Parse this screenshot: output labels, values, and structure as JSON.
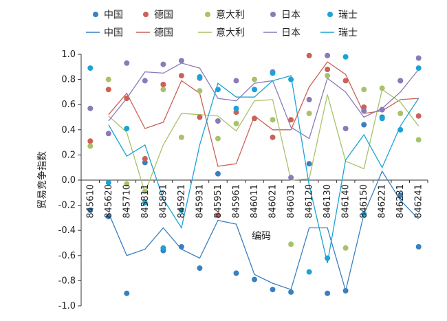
{
  "chart_data": {
    "type": "scatter",
    "title": "",
    "xlabel": "编码",
    "ylabel": "贸易竞争指数",
    "ylim": [
      -1.0,
      1.0
    ],
    "yticks": [
      "-1.0",
      "-0.8",
      "-0.6",
      "-0.4",
      "-0.2",
      "0.0",
      "0.2",
      "0.4",
      "0.6",
      "0.8",
      "1.0"
    ],
    "categories": [
      "845610",
      "845620",
      "845710",
      "845811",
      "845891",
      "845921",
      "845931",
      "845951",
      "845961",
      "846011",
      "846021",
      "846031",
      "846120",
      "846130",
      "846140",
      "846150",
      "846221",
      "846231",
      "846241"
    ],
    "legend_placement": "top",
    "legend_scatter_row": [
      "中国",
      "德国",
      "意大利",
      "日本",
      "瑞士"
    ],
    "legend_line_row": [
      "中国",
      "德国",
      "意大利",
      "日本",
      "瑞士"
    ],
    "series": [
      {
        "name": "中国",
        "color": "#3a7fc0",
        "points": [
          -0.24,
          -0.29,
          -0.9,
          0.14,
          -0.56,
          -0.53,
          -0.7,
          0.05,
          -0.74,
          -0.79,
          -0.87,
          -0.89,
          0.13,
          -0.9,
          -0.88,
          0.44,
          0.5,
          -0.12,
          -0.53
        ],
        "trend": [
          null,
          -0.26,
          -0.6,
          -0.55,
          -0.38,
          -0.55,
          -0.62,
          -0.32,
          -0.35,
          -0.75,
          -0.82,
          -0.87,
          -0.38,
          -0.38,
          -0.88,
          -0.27,
          0.07,
          -0.16,
          -0.31
        ]
      },
      {
        "name": "德国",
        "color": "#cc6155",
        "points": [
          0.31,
          0.72,
          0.65,
          0.17,
          0.76,
          0.83,
          0.5,
          -0.28,
          0.54,
          0.49,
          0.34,
          0.48,
          0.99,
          0.88,
          0.79,
          0.58,
          0.56,
          0.79,
          0.51
        ],
        "trend": [
          null,
          0.52,
          0.69,
          0.41,
          0.46,
          0.79,
          0.69,
          0.11,
          0.13,
          0.51,
          0.4,
          0.4,
          0.74,
          0.94,
          0.84,
          0.53,
          0.55,
          0.64,
          0.65
        ]
      },
      {
        "name": "意大利",
        "color": "#a8c26a",
        "points": [
          0.27,
          0.8,
          -0.03,
          -0.09,
          0.72,
          0.34,
          0.71,
          0.33,
          0.45,
          0.8,
          0.48,
          -0.51,
          0.53,
          0.83,
          -0.54,
          0.72,
          0.73,
          0.53,
          0.32
        ],
        "trend": [
          null,
          0.51,
          0.38,
          -0.1,
          0.28,
          0.53,
          0.52,
          0.51,
          0.39,
          0.63,
          0.64,
          0.0,
          0.01,
          0.68,
          0.15,
          0.09,
          0.72,
          0.62,
          0.43
        ]
      },
      {
        "name": "日本",
        "color": "#8c7ab8",
        "points": [
          0.57,
          0.37,
          0.93,
          0.79,
          0.92,
          0.95,
          0.81,
          0.47,
          0.79,
          0.72,
          0.86,
          0.02,
          0.64,
          0.99,
          0.41,
          0.55,
          0.56,
          0.79,
          0.97
        ],
        "trend": [
          null,
          0.47,
          0.65,
          0.86,
          0.85,
          0.93,
          0.89,
          0.65,
          0.63,
          0.77,
          0.79,
          0.42,
          0.33,
          0.81,
          0.7,
          0.5,
          0.57,
          0.7,
          0.88
        ]
      },
      {
        "name": "瑞士",
        "color": "#1aa3d6",
        "points": [
          0.89,
          -0.02,
          0.41,
          -0.18,
          -0.54,
          -0.24,
          0.82,
          0.72,
          0.57,
          0.72,
          0.85,
          0.8,
          -0.73,
          -0.62,
          0.98,
          -0.27,
          0.49,
          0.4,
          0.89
        ],
        "trend": [
          null,
          0.44,
          0.19,
          0.28,
          -0.15,
          -0.38,
          0.28,
          0.77,
          0.66,
          0.66,
          0.79,
          0.83,
          -0.04,
          -0.66,
          0.16,
          0.36,
          0.1,
          0.43,
          0.65
        ]
      }
    ]
  }
}
